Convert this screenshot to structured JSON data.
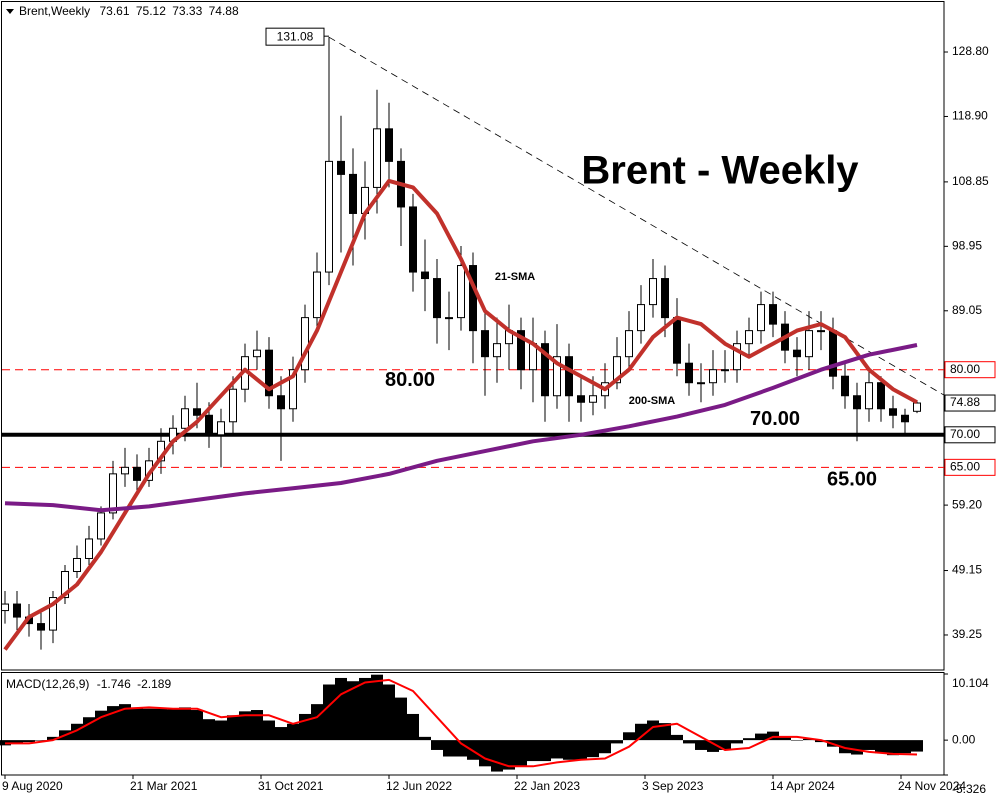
{
  "chart_data": {
    "type": "candlestick",
    "symbol": "Brent,Weekly",
    "title": "Brent - Weekly",
    "x": [
      0,
      3,
      6,
      9,
      12,
      15,
      18,
      21,
      24,
      27,
      30,
      33,
      36,
      39,
      42,
      45,
      48,
      51,
      54,
      57,
      60,
      63,
      66,
      69,
      72,
      75,
      78,
      81,
      84,
      87,
      90,
      93,
      96,
      99,
      102,
      105,
      108,
      111,
      114,
      117,
      120,
      123,
      126,
      129,
      132,
      135,
      138,
      141,
      144,
      147,
      150,
      153,
      156,
      159,
      162,
      165,
      168,
      171,
      174,
      177,
      180,
      183,
      186,
      189,
      192,
      195,
      198,
      201,
      204,
      207,
      210,
      213,
      216,
      219,
      222,
      225,
      228
    ],
    "open": [
      43,
      44,
      42,
      41,
      40,
      45,
      49,
      51,
      54,
      58,
      64,
      65,
      63,
      66,
      69,
      71,
      74,
      73,
      70,
      72,
      77,
      82,
      83,
      76,
      74,
      80,
      88,
      95,
      112,
      110,
      104,
      108,
      117,
      112,
      105,
      95,
      94,
      88,
      88,
      96,
      86,
      82,
      84,
      86,
      80,
      84,
      76,
      82,
      76,
      75,
      76,
      78,
      82,
      86,
      90,
      94,
      88,
      81,
      78,
      78,
      80,
      80,
      84,
      86,
      90,
      87,
      83,
      82,
      86,
      86,
      79,
      76,
      74,
      78,
      74,
      73,
      73.61
    ],
    "high": [
      46,
      46,
      44,
      43,
      46,
      50,
      53,
      56,
      59,
      66,
      68,
      67,
      68,
      71,
      73,
      76,
      78,
      75,
      74,
      79,
      84,
      86,
      85,
      79,
      82,
      90,
      98,
      131.08,
      119,
      114,
      112,
      123,
      121,
      114,
      107,
      100,
      97,
      92,
      99,
      98,
      89,
      88,
      90,
      88,
      88,
      86,
      87,
      84,
      79,
      79,
      81,
      85,
      89,
      93,
      97,
      96,
      91,
      84,
      81,
      83,
      83,
      86,
      88,
      92,
      92,
      89,
      85,
      89,
      89,
      88,
      81,
      78,
      80,
      79,
      76,
      74,
      75.12
    ],
    "low": [
      41,
      40,
      39,
      37,
      38,
      44,
      48,
      50,
      53,
      57,
      62,
      61,
      62,
      64,
      67,
      69,
      71,
      68,
      65,
      70,
      75,
      80,
      74,
      66,
      72,
      78,
      86,
      93,
      98,
      96,
      100,
      104,
      108,
      99,
      92,
      89,
      84,
      83,
      86,
      81,
      76,
      78,
      80,
      77,
      75,
      72,
      74,
      72,
      72,
      73,
      74,
      77,
      80,
      84,
      88,
      85,
      79,
      76,
      75,
      76,
      78,
      78,
      82,
      84,
      85,
      81,
      79,
      80,
      83,
      77,
      74,
      69,
      72,
      72,
      71,
      70,
      73.33
    ],
    "close": [
      44,
      42,
      41,
      40,
      45,
      49,
      51,
      54,
      58,
      64,
      65,
      63,
      66,
      69,
      71,
      74,
      73,
      70,
      72,
      77,
      82,
      83,
      76,
      74,
      80,
      88,
      95,
      112,
      110,
      104,
      108,
      117,
      112,
      105,
      95,
      94,
      88,
      88,
      96,
      86,
      82,
      84,
      86,
      80,
      84,
      76,
      82,
      76,
      75,
      76,
      78,
      82,
      86,
      90,
      94,
      88,
      81,
      78,
      78,
      80,
      80,
      84,
      86,
      90,
      87,
      83,
      82,
      86,
      86,
      79,
      76,
      74,
      78,
      74,
      73,
      72,
      74.88
    ],
    "xlim": [
      -1.25,
      234.75
    ],
    "xticks": [
      {
        "value": 0,
        "label": "9 Aug 2020"
      },
      {
        "value": 32,
        "label": "21 Mar 2021"
      },
      {
        "value": 64,
        "label": "31 Oct 2021"
      },
      {
        "value": 96,
        "label": "12 Jun 2022"
      },
      {
        "value": 128,
        "label": "22 Jan 2023"
      },
      {
        "value": 160,
        "label": "3 Sep 2023"
      },
      {
        "value": 192,
        "label": "14 Apr 2024"
      },
      {
        "value": 224,
        "label": "24 Nov 2024"
      }
    ],
    "ylim": [
      33.87,
      136.79
    ],
    "yticks": [
      {
        "value": 128.8,
        "label": "128.80"
      },
      {
        "value": 118.9,
        "label": "118.90"
      },
      108.85,
      98.95,
      89.05,
      {
        "value": 59.2,
        "label": "59.20"
      },
      49.15,
      39.25
    ],
    "series": [
      {
        "name": "21-SMA",
        "color": "#c1312b",
        "x": [
          0,
          6,
          12,
          18,
          24,
          30,
          36,
          42,
          48,
          54,
          60,
          66,
          72,
          78,
          84,
          90,
          96,
          102,
          108,
          114,
          120,
          126,
          132,
          138,
          144,
          150,
          156,
          162,
          168,
          174,
          180,
          186,
          192,
          198,
          204,
          210,
          216,
          222,
          228
        ],
        "values": [
          37,
          42,
          44,
          47,
          52,
          58,
          64,
          69,
          72,
          76,
          80,
          77,
          79,
          86,
          95,
          104,
          109,
          108,
          104,
          97,
          89,
          86,
          84,
          81,
          79,
          77,
          80,
          85,
          88,
          87,
          84,
          82,
          84,
          86,
          87,
          85,
          80,
          77,
          75
        ]
      },
      {
        "name": "200-SMA",
        "color": "#7a1b86",
        "x": [
          0,
          12,
          24,
          36,
          48,
          60,
          72,
          84,
          96,
          108,
          120,
          132,
          144,
          156,
          168,
          180,
          192,
          204,
          216,
          228
        ],
        "values": [
          59.5,
          59.2,
          58.4,
          59.0,
          60.0,
          61.0,
          61.8,
          62.6,
          64.0,
          66.0,
          67.5,
          69.0,
          70.0,
          71.3,
          72.8,
          74.6,
          77.2,
          80.0,
          82.3,
          83.8
        ]
      }
    ],
    "levels": [
      {
        "value": 80,
        "label": "80.00",
        "color": "#ff0000",
        "style": "dashed"
      },
      {
        "value": 70,
        "label": "70.00",
        "color": "#000000",
        "style": "solid"
      },
      {
        "value": 65,
        "label": "65.00",
        "color": "#ff0000",
        "style": "dashed"
      }
    ],
    "trendline": {
      "x": [
        81,
        234.75
      ],
      "values": [
        131.08,
        76.1
      ]
    },
    "macd": {
      "name": "MACD(12,26,9)",
      "color": "#000000",
      "signal_color": "#ff0000",
      "x": [
        0,
        3,
        6,
        9,
        12,
        15,
        18,
        21,
        24,
        27,
        30,
        33,
        36,
        39,
        42,
        45,
        48,
        51,
        54,
        57,
        60,
        63,
        66,
        69,
        72,
        75,
        78,
        81,
        84,
        87,
        90,
        93,
        96,
        99,
        102,
        105,
        108,
        111,
        114,
        117,
        120,
        123,
        126,
        129,
        132,
        135,
        138,
        141,
        144,
        147,
        150,
        153,
        156,
        159,
        162,
        165,
        168,
        171,
        174,
        177,
        180,
        183,
        186,
        189,
        192,
        195,
        198,
        201,
        204,
        207,
        210,
        213,
        216,
        219,
        222,
        225,
        228
      ],
      "values": [
        -0.8,
        -0.5,
        -0.3,
        0,
        0.5,
        1.5,
        2.5,
        3.5,
        4.5,
        5.2,
        5.5,
        5.0,
        4.8,
        4.8,
        4.7,
        5.0,
        4.6,
        3.2,
        3.0,
        3.8,
        4.4,
        4.6,
        3.0,
        2.0,
        2.5,
        4.0,
        5.5,
        8.5,
        9.5,
        9.0,
        9.5,
        10.0,
        8.5,
        6.5,
        4.0,
        0.5,
        -1.5,
        -2.5,
        -2.5,
        -3.0,
        -4.0,
        -4.8,
        -4.5,
        -4.0,
        -3.2,
        -3.2,
        -2.8,
        -3.0,
        -3.0,
        -2.6,
        -2.0,
        -0.5,
        1.2,
        2.5,
        3.0,
        2.6,
        0.8,
        -0.5,
        -1.5,
        -1.8,
        -1.5,
        -0.5,
        0.3,
        1.0,
        1.3,
        0.5,
        0.0,
        0.2,
        -0.3,
        -1.0,
        -2.0,
        -2.2,
        -1.5,
        -2.0,
        -2.3,
        -2.0,
        -1.746
      ],
      "signal_x": [
        0,
        6,
        12,
        18,
        24,
        30,
        36,
        42,
        48,
        54,
        60,
        66,
        72,
        78,
        84,
        90,
        96,
        102,
        108,
        114,
        120,
        126,
        132,
        138,
        144,
        150,
        156,
        162,
        168,
        174,
        180,
        186,
        192,
        198,
        204,
        210,
        216,
        222,
        228
      ],
      "signal": [
        -0.5,
        -0.5,
        0,
        1.5,
        3.5,
        4.8,
        5.0,
        4.8,
        4.8,
        3.5,
        3.8,
        3.8,
        2.5,
        3.5,
        7,
        8.8,
        9.2,
        7.5,
        3.5,
        -0.5,
        -2.8,
        -4.0,
        -4.0,
        -3.4,
        -3.0,
        -2.8,
        -1.0,
        2.0,
        2.5,
        0.5,
        -1.5,
        -1.2,
        0.5,
        0.5,
        0,
        -1.2,
        -1.8,
        -2.1,
        -2.189
      ],
      "ylim": [
        -5.326,
        10.104
      ],
      "yticks": [
        10.104,
        {
          "value": 0,
          "label": "0.00"
        },
        -5.326
      ]
    }
  }
}
